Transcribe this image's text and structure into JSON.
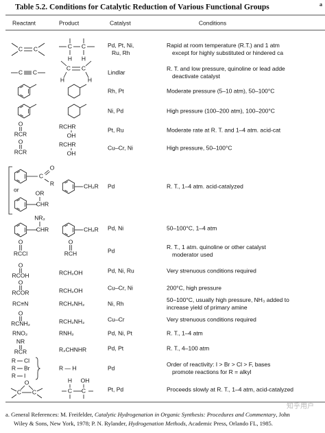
{
  "title": "Table 5.2.  Conditions for Catalytic Reduction of Various Functional Groups",
  "superscript": "a",
  "header": [
    "Reactant",
    "Product",
    "Catalyst",
    "Conditions"
  ],
  "rows": [
    {
      "reactant": [
        "C",
        "C"
      ],
      "product": [
        "C",
        "C",
        "H",
        "H"
      ],
      "catalyst": [
        "Pd, Pt, Ni,",
        "Ru, Rh"
      ],
      "conditions": [
        "Rapid at room temperature (R.T.) and 1 atm",
        "except for highly substituted or hindered ca"
      ]
    },
    {
      "reactant": [
        "C",
        "C"
      ],
      "product": [
        "C",
        "C",
        "H",
        "H"
      ],
      "catalyst": [
        "Lindlar"
      ],
      "conditions": [
        "R. T. and low pressure, quinoline or lead adde",
        "deactivate catalyst"
      ]
    },
    {
      "catalyst": [
        "Rh, Pt"
      ],
      "conditions": [
        "Moderate pressure (5–10 atm), 50–100°C"
      ]
    },
    {
      "catalyst": [
        "Ni, Pd"
      ],
      "conditions": [
        "High pressure (100–200 atm), 100–200°C"
      ]
    },
    {
      "reactant": [
        "O",
        "RCR"
      ],
      "product": [
        "RCHR",
        "OH"
      ],
      "catalyst": [
        "Pt, Ru"
      ],
      "conditions": [
        "Moderate rate at R. T. and 1–4 atm. acid-cat"
      ]
    },
    {
      "reactant": [
        "O",
        "RCR"
      ],
      "product": [
        "RCHR",
        "OH"
      ],
      "catalyst": [
        "Cu–Cr, Ni"
      ],
      "conditions": [
        "High pressure, 50–100°C"
      ]
    },
    {
      "reactant": [
        "C",
        "O",
        "R",
        "or",
        "OR",
        "CHR"
      ],
      "product": [
        "CH₂R"
      ],
      "catalyst": [
        "Pd"
      ],
      "conditions": [
        "R. T., 1–4 atm. acid-catalyzed"
      ]
    },
    {
      "reactant": [
        "NR₂",
        "CHR"
      ],
      "product": [
        "CH₂R"
      ],
      "catalyst": [
        "Pd, Ni"
      ],
      "conditions": [
        "50–100°C, 1–4 atm"
      ]
    },
    {
      "reactant": [
        "O",
        "RCCl"
      ],
      "product": [
        "O",
        "RCH"
      ],
      "catalyst": [
        "Pd"
      ],
      "conditions": [
        "R. T., 1 atm. quinoline or other catalyst",
        "moderator used"
      ]
    },
    {
      "reactant": [
        "O",
        "RCOH"
      ],
      "product": [
        "RCH₂OH"
      ],
      "catalyst": [
        "Pd, Ni, Ru"
      ],
      "conditions": [
        "Very strenuous conditions required"
      ]
    },
    {
      "reactant": [
        "O",
        "RCOR"
      ],
      "product": [
        "RCH₂OH"
      ],
      "catalyst": [
        "Cu–Cr, Ni"
      ],
      "conditions": [
        "200°C, high pressure"
      ]
    },
    {
      "reactant": [
        "RC≡N"
      ],
      "product": [
        "RCH₂NH₂"
      ],
      "catalyst": [
        "Ni, Rh"
      ],
      "conditions": [
        "50–100°C, usually high pressure, NH₃ added to",
        "increase yield of primary amine"
      ]
    },
    {
      "reactant": [
        "O",
        "RCNH₂"
      ],
      "product": [
        "RCH₂NH₂"
      ],
      "catalyst": [
        "Cu–Cr"
      ],
      "conditions": [
        "Very strenuous conditions required"
      ]
    },
    {
      "reactant": [
        "RNO₂"
      ],
      "product": [
        "RNH₂"
      ],
      "catalyst": [
        "Pd, Ni, Pt"
      ],
      "conditions": [
        "R. T., 1–4 atm"
      ]
    },
    {
      "reactant": [
        "NR",
        "RCR"
      ],
      "product": [
        "R₂CHNHR"
      ],
      "catalyst": [
        "Pd, Pt"
      ],
      "conditions": [
        "R. T., 4–100 atm"
      ]
    },
    {
      "reactant": [
        "R",
        "Cl",
        "R",
        "Br",
        "R",
        "I"
      ],
      "product": [
        "R — H"
      ],
      "catalyst": [
        "Pd"
      ],
      "conditions": [
        "Order of reactivity: I > Br > Cl > F, bases",
        "promote reactions for R = alkyl"
      ]
    },
    {
      "reactant": [
        "O",
        "C",
        "C"
      ],
      "product": [
        "H",
        "OH",
        "C",
        "C"
      ],
      "catalyst": [
        "Pt, Pd"
      ],
      "conditions": [
        "Proceeds slowly at R. T., 1–4 atm, acid-catalyzed"
      ]
    }
  ],
  "footnote": [
    "a. General References: M. Freifelder, ",
    "Catalytic Hydrogenation in Organic Synthesis: Procedures and Commentary",
    ", John",
    "Wiley & Sons, New York, 1978; P. N. Rylander, ",
    "Hydrogenation Methods",
    ", Academic Press, Orlando FL, 1985."
  ],
  "watermark": "知乎用户"
}
